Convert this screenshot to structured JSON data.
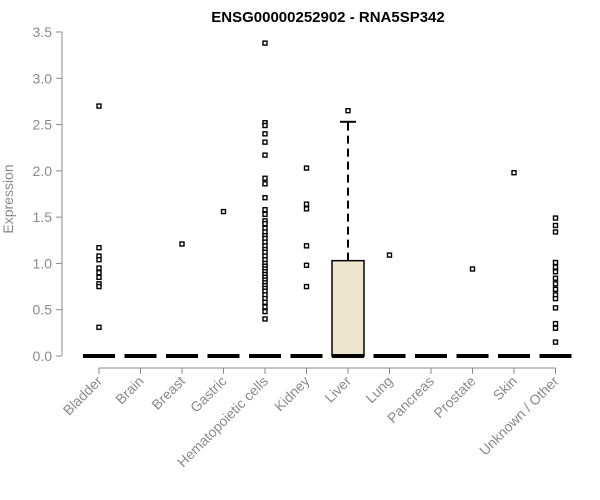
{
  "chart_data": {
    "type": "box",
    "title": "ENSG00000252902 - RNA5SP342",
    "xlabel": "",
    "ylabel": "Expression",
    "ylim": [
      0,
      3.5
    ],
    "yticks": [
      "0.0",
      "0.5",
      "1.0",
      "1.5",
      "2.0",
      "2.5",
      "3.0",
      "3.5"
    ],
    "categories": [
      "Bladder",
      "Brain",
      "Breast",
      "Gastric",
      "Hematopoietic cells",
      "Kidney",
      "Liver",
      "Lung",
      "Pancreas",
      "Prostate",
      "Skin",
      "Unknown / Other"
    ],
    "box_color": "#ede6cc",
    "boxes": [
      {
        "category": "Bladder",
        "q1": 0,
        "median": 0,
        "q3": 0,
        "whisker_low": 0,
        "whisker_high": 0,
        "outliers": [
          2.7,
          1.17,
          1.08,
          1.04,
          0.95,
          0.9,
          0.85,
          0.78,
          0.75,
          0.31
        ]
      },
      {
        "category": "Brain",
        "q1": 0,
        "median": 0,
        "q3": 0,
        "whisker_low": 0,
        "whisker_high": 0,
        "outliers": []
      },
      {
        "category": "Breast",
        "q1": 0,
        "median": 0,
        "q3": 0,
        "whisker_low": 0,
        "whisker_high": 0,
        "outliers": [
          1.21
        ]
      },
      {
        "category": "Gastric",
        "q1": 0,
        "median": 0,
        "q3": 0,
        "whisker_low": 0,
        "whisker_high": 0,
        "outliers": [
          1.56
        ]
      },
      {
        "category": "Hematopoietic cells",
        "q1": 0,
        "median": 0,
        "q3": 0,
        "whisker_low": 0,
        "whisker_high": 0,
        "outliers": [
          3.38,
          2.52,
          2.49,
          2.4,
          2.31,
          2.17,
          1.92,
          1.86,
          1.71,
          1.58,
          1.53,
          1.46,
          1.43,
          1.38,
          1.34,
          1.3,
          1.27,
          1.23,
          1.19,
          1.15,
          1.12,
          1.08,
          1.04,
          1.0,
          0.97,
          0.94,
          0.91,
          0.88,
          0.85,
          0.82,
          0.79,
          0.76,
          0.73,
          0.7,
          0.66,
          0.62,
          0.58,
          0.53,
          0.48,
          0.4
        ]
      },
      {
        "category": "Kidney",
        "q1": 0,
        "median": 0,
        "q3": 0,
        "whisker_low": 0,
        "whisker_high": 0,
        "outliers": [
          2.03,
          1.64,
          1.59,
          1.19,
          0.98,
          0.75
        ]
      },
      {
        "category": "Liver",
        "q1": 0,
        "median": 0,
        "q3": 1.03,
        "whisker_low": 0,
        "whisker_high": 2.53,
        "outliers": [
          2.65
        ]
      },
      {
        "category": "Lung",
        "q1": 0,
        "median": 0,
        "q3": 0,
        "whisker_low": 0,
        "whisker_high": 0,
        "outliers": [
          1.09
        ]
      },
      {
        "category": "Pancreas",
        "q1": 0,
        "median": 0,
        "q3": 0,
        "whisker_low": 0,
        "whisker_high": 0,
        "outliers": []
      },
      {
        "category": "Prostate",
        "q1": 0,
        "median": 0,
        "q3": 0,
        "whisker_low": 0,
        "whisker_high": 0,
        "outliers": [
          0.94
        ]
      },
      {
        "category": "Skin",
        "q1": 0,
        "median": 0,
        "q3": 0,
        "whisker_low": 0,
        "whisker_high": 0,
        "outliers": [
          1.98
        ]
      },
      {
        "category": "Unknown / Other",
        "q1": 0,
        "median": 0,
        "q3": 0,
        "whisker_low": 0,
        "whisker_high": 0,
        "outliers": [
          1.49,
          1.41,
          1.34,
          1.01,
          0.96,
          0.91,
          0.84,
          0.78,
          0.72,
          0.66,
          0.62,
          0.52,
          0.35,
          0.3,
          0.15
        ]
      }
    ]
  }
}
